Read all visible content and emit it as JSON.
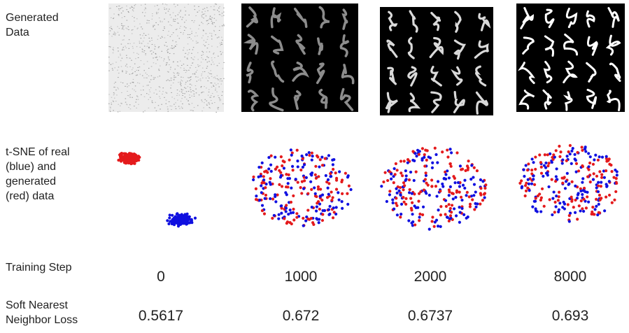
{
  "row_labels": [
    [
      "Generated",
      "Data"
    ],
    [
      "t-SNE of real",
      "(blue) and",
      "generated",
      "(red) data"
    ],
    [
      "Training Step"
    ],
    [
      "Soft Nearest",
      "Neighbor Loss"
    ]
  ],
  "training_steps": [
    "0",
    "1000",
    "2000",
    "8000"
  ],
  "losses": [
    "0.5617",
    "0.672",
    "0.6737",
    "0.693"
  ]
}
